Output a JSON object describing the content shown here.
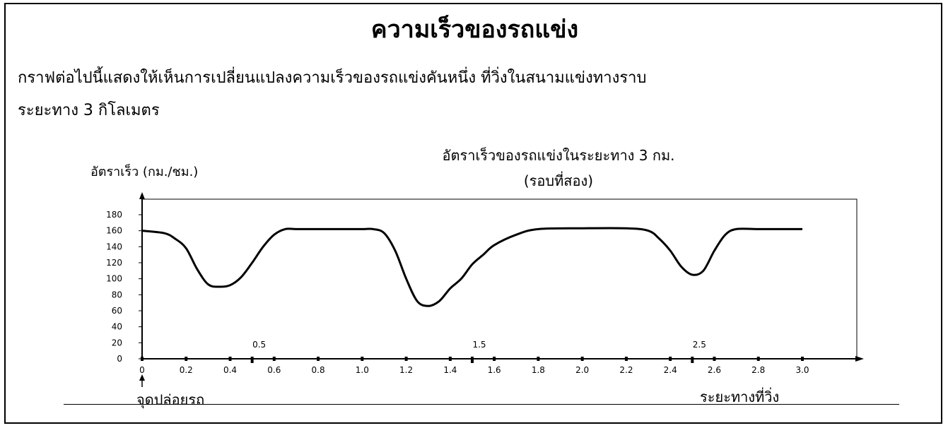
{
  "title": "ความเร็วของรถแข่ง",
  "intro": {
    "line1": "กราฟต่อไปนี้แสดงให้เห็นการเปลี่ยนแปลงความเร็วของรถแข่งคันหนึ่ง ที่วิ่งในสนามแข่งทางราบ",
    "line2": "ระยะทาง 3 กิโลเมตร"
  },
  "chart_data": {
    "type": "line",
    "title": "อัตราเร็วของรถแข่งในระยะทาง 3 กม.",
    "subtitle": "(รอบที่สอง)",
    "ylabel": "อัตราเร็ว (กม./ชม.)",
    "xlabel": "ระยะทางที่วิ่ง",
    "start_label": "จุดปล่อยรถ",
    "xlim": [
      0,
      3.0
    ],
    "ylim": [
      0,
      180
    ],
    "xticks": [
      "0",
      "0.2",
      "0.4",
      "0.6",
      "0.8",
      "1.0",
      "1.2",
      "1.4",
      "1.6",
      "1.8",
      "2.0",
      "2.2",
      "2.4",
      "2.6",
      "2.8",
      "3.0"
    ],
    "yticks": [
      "0",
      "20",
      "40",
      "60",
      "80",
      "100",
      "120",
      "140",
      "160",
      "180"
    ],
    "half_marks": [
      "0.5",
      "1.5",
      "2.5"
    ],
    "series": [
      {
        "x": [
          0,
          0.1,
          0.15,
          0.2,
          0.25,
          0.3,
          0.35,
          0.4,
          0.45,
          0.5,
          0.55,
          0.6,
          0.65,
          0.7,
          0.8,
          0.9,
          1.0,
          1.05,
          1.1,
          1.15,
          1.2,
          1.25,
          1.3,
          1.35,
          1.4,
          1.45,
          1.5,
          1.55,
          1.6,
          1.7,
          1.8,
          2.0,
          2.2,
          2.3,
          2.35,
          2.4,
          2.45,
          2.5,
          2.55,
          2.6,
          2.65,
          2.7,
          2.8,
          3.0
        ],
        "y": [
          160,
          157,
          150,
          138,
          112,
          93,
          90,
          92,
          102,
          120,
          140,
          155,
          162,
          162,
          162,
          162,
          162,
          162,
          157,
          135,
          100,
          72,
          66,
          72,
          88,
          100,
          118,
          130,
          142,
          155,
          162,
          163,
          163,
          160,
          150,
          135,
          115,
          105,
          110,
          135,
          155,
          162,
          162,
          162
        ]
      }
    ]
  }
}
